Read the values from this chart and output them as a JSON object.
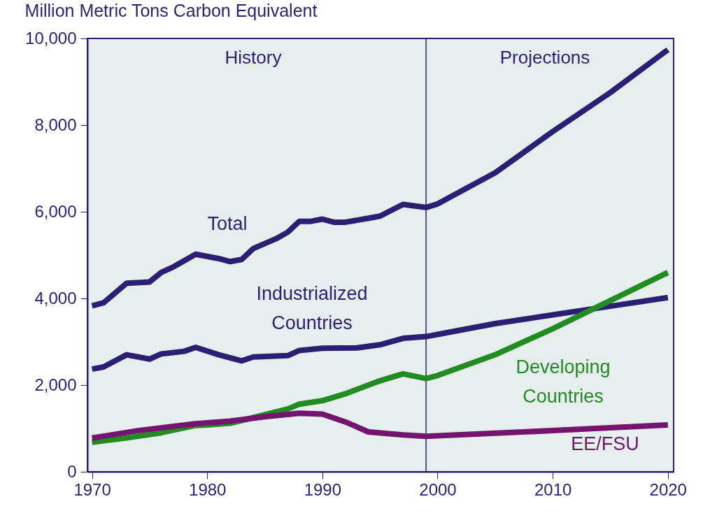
{
  "chart_data": {
    "type": "line",
    "ylabel": "Million Metric Tons Carbon Equivalent",
    "xlim": [
      1969.6,
      2020.5
    ],
    "xticks": [
      1970,
      1980,
      1990,
      2000,
      2010,
      2020
    ],
    "ylim": [
      0,
      10000
    ],
    "yticks": [
      {
        "value": 0,
        "label": "0"
      },
      {
        "value": 2000,
        "label": "2,000"
      },
      {
        "value": 4000,
        "label": "4,000"
      },
      {
        "value": 6000,
        "label": "6,000"
      },
      {
        "value": 8000,
        "label": "8,000"
      },
      {
        "value": 10000,
        "label": "10,000"
      }
    ],
    "grid": false,
    "marker": "none",
    "line_style": "solid",
    "ref_lines": [
      {
        "axis": "x",
        "value": 1999,
        "label": null,
        "color": "#2b1f73"
      }
    ],
    "annotations": [
      "History",
      "Projections"
    ],
    "series": [
      {
        "name": "Total",
        "color": "#2b1f73",
        "x": [
          1970,
          1971,
          1973,
          1975,
          1976,
          1977,
          1979,
          1981,
          1982,
          1983,
          1984,
          1986,
          1987,
          1988,
          1989,
          1990,
          1991,
          1992,
          1994,
          1995,
          1997,
          1999,
          2000,
          2005,
          2010,
          2015,
          2020
        ],
        "values": [
          3830,
          3900,
          4350,
          4380,
          4600,
          4720,
          5020,
          4920,
          4850,
          4900,
          5150,
          5380,
          5530,
          5780,
          5780,
          5830,
          5760,
          5760,
          5850,
          5900,
          6170,
          6100,
          6180,
          6900,
          7850,
          8750,
          9740
        ]
      },
      {
        "name": "Industrialized Countries",
        "color": "#2b1f73",
        "x": [
          1970,
          1971,
          1973,
          1975,
          1976,
          1978,
          1979,
          1981,
          1983,
          1984,
          1987,
          1988,
          1990,
          1993,
          1995,
          1997,
          1999,
          2000,
          2005,
          2010,
          2015,
          2020
        ],
        "values": [
          2370,
          2420,
          2700,
          2600,
          2720,
          2780,
          2870,
          2700,
          2560,
          2650,
          2680,
          2800,
          2850,
          2860,
          2930,
          3080,
          3120,
          3170,
          3420,
          3620,
          3820,
          4020
        ]
      },
      {
        "name": "Developing Countries",
        "color": "#228b22",
        "x": [
          1970,
          1973,
          1976,
          1979,
          1980,
          1982,
          1984,
          1987,
          1988,
          1990,
          1992,
          1995,
          1997,
          1999,
          2000,
          2005,
          2010,
          2015,
          2020
        ],
        "values": [
          680,
          780,
          900,
          1070,
          1080,
          1120,
          1250,
          1450,
          1560,
          1640,
          1800,
          2100,
          2260,
          2150,
          2220,
          2700,
          3300,
          3950,
          4600
        ]
      },
      {
        "name": "EE/FSU",
        "color": "#73156e",
        "x": [
          1970,
          1974,
          1979,
          1982,
          1985,
          1988,
          1990,
          1992,
          1994,
          1997,
          1999,
          2000,
          2010,
          2020
        ],
        "values": [
          780,
          950,
          1110,
          1170,
          1270,
          1350,
          1330,
          1150,
          920,
          850,
          820,
          830,
          950,
          1080
        ]
      }
    ]
  }
}
